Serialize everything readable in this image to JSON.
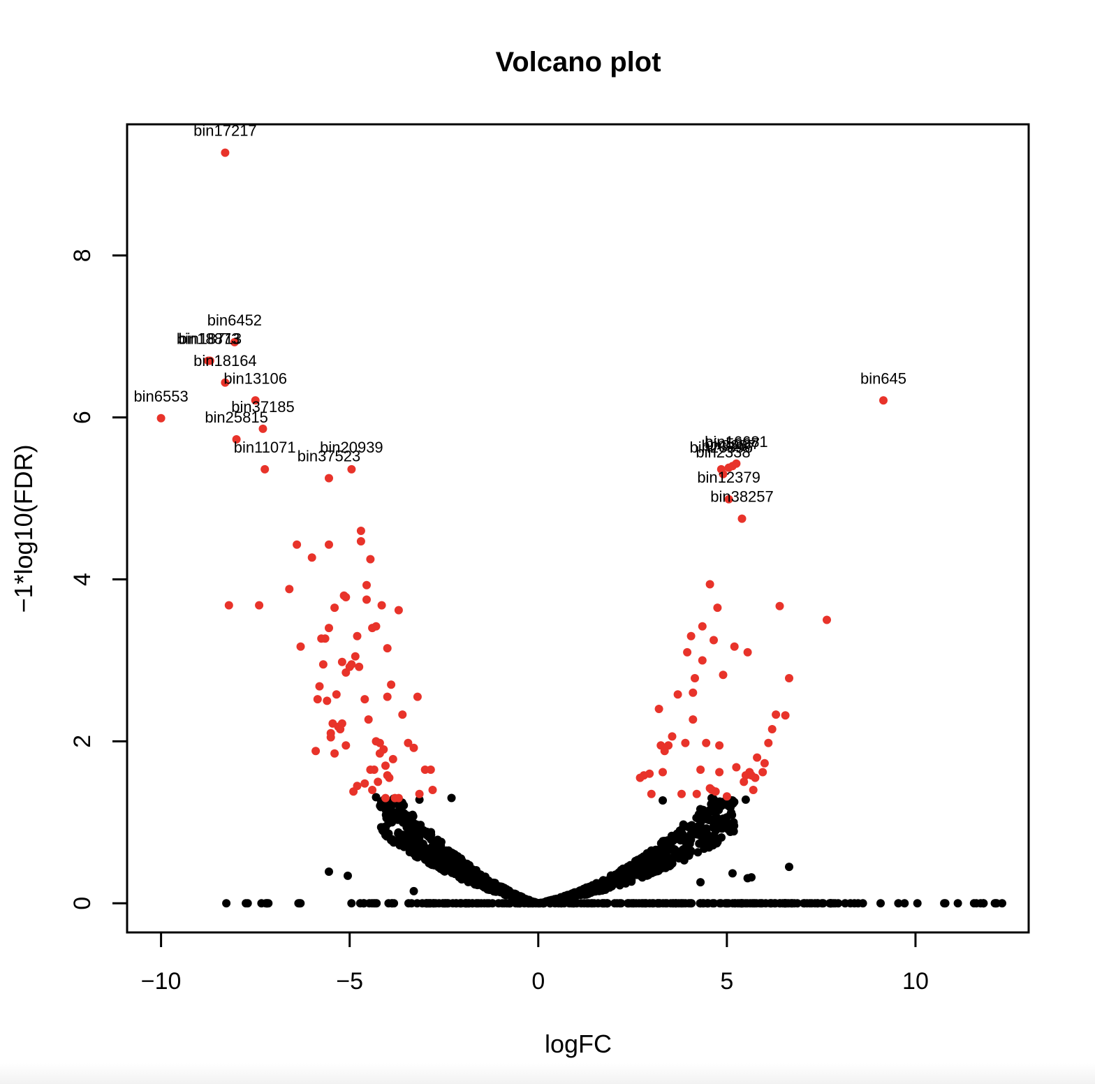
{
  "chart_data": {
    "type": "scatter",
    "title": "Volcano plot",
    "xlabel": "logFC",
    "ylabel": "−1*log10(FDR)",
    "xlim": [
      -10.9,
      13.0
    ],
    "ylim": [
      -0.36,
      9.62
    ],
    "x_ticks": [
      -10,
      -5,
      0,
      5,
      10
    ],
    "x_tick_labels": [
      "−10",
      "−5",
      "0",
      "5",
      "10"
    ],
    "y_ticks": [
      0,
      2,
      4,
      6,
      8
    ],
    "y_tick_labels": [
      "0",
      "2",
      "4",
      "6",
      "8"
    ],
    "grid": false,
    "colors": {
      "significant": "#e8332a",
      "not_significant": "#000000",
      "axes": "#000000"
    },
    "labeled_points": [
      {
        "label": "bin17217",
        "x": -8.3,
        "y": 9.27
      },
      {
        "label": "bin6452",
        "x": -8.05,
        "y": 6.93
      },
      {
        "label": "bin18873",
        "x": -8.75,
        "y": 6.7
      },
      {
        "label": "bin18713",
        "x": -8.7,
        "y": 6.7
      },
      {
        "label": "bin18164",
        "x": -8.3,
        "y": 6.43
      },
      {
        "label": "bin13106",
        "x": -7.5,
        "y": 6.21
      },
      {
        "label": "bin6553",
        "x": -10.0,
        "y": 5.99
      },
      {
        "label": "bin37185",
        "x": -7.3,
        "y": 5.86
      },
      {
        "label": "bin25815",
        "x": -8.0,
        "y": 5.73
      },
      {
        "label": "bin11071",
        "x": -7.25,
        "y": 5.36
      },
      {
        "label": "bin20939",
        "x": -4.95,
        "y": 5.36
      },
      {
        "label": "bin37523",
        "x": -5.55,
        "y": 5.25
      },
      {
        "label": "bin645",
        "x": 9.15,
        "y": 6.21
      },
      {
        "label": "bin16681",
        "x": 5.25,
        "y": 5.43
      },
      {
        "label": "bin26396",
        "x": 4.85,
        "y": 5.36
      },
      {
        "label": "bin12379",
        "x": 5.05,
        "y": 4.99
      },
      {
        "label": "bin38257",
        "x": 5.4,
        "y": 4.75
      }
    ],
    "overlap_labels": [
      {
        "label": "bin2338",
        "x": 4.9,
        "y": 5.3
      },
      {
        "label": "bin3287",
        "x": 5.05,
        "y": 5.38
      },
      {
        "label": "bin5237",
        "x": 5.15,
        "y": 5.4
      }
    ],
    "significant_points": [
      [
        -8.2,
        3.68
      ],
      [
        -7.4,
        3.68
      ],
      [
        -6.6,
        3.88
      ],
      [
        -6.4,
        4.43
      ],
      [
        -6.3,
        3.17
      ],
      [
        -6.0,
        4.27
      ],
      [
        -5.9,
        1.88
      ],
      [
        -5.85,
        2.52
      ],
      [
        -5.8,
        2.68
      ],
      [
        -5.75,
        3.27
      ],
      [
        -5.7,
        2.95
      ],
      [
        -5.65,
        3.27
      ],
      [
        -5.6,
        2.5
      ],
      [
        -5.55,
        3.4
      ],
      [
        -5.55,
        4.43
      ],
      [
        -5.5,
        2.05
      ],
      [
        -5.5,
        2.1
      ],
      [
        -5.45,
        2.22
      ],
      [
        -5.4,
        3.65
      ],
      [
        -5.35,
        2.58
      ],
      [
        -5.3,
        2.18
      ],
      [
        -5.25,
        2.15
      ],
      [
        -5.2,
        2.22
      ],
      [
        -5.2,
        2.98
      ],
      [
        -5.15,
        3.8
      ],
      [
        -5.1,
        3.78
      ],
      [
        -5.1,
        2.85
      ],
      [
        -5.0,
        2.92
      ],
      [
        -4.95,
        2.95
      ],
      [
        -4.85,
        3.05
      ],
      [
        -4.8,
        3.3
      ],
      [
        -4.75,
        2.92
      ],
      [
        -4.7,
        4.47
      ],
      [
        -4.7,
        4.6
      ],
      [
        -4.6,
        2.52
      ],
      [
        -4.55,
        3.93
      ],
      [
        -4.55,
        3.75
      ],
      [
        -4.5,
        2.27
      ],
      [
        -4.45,
        4.25
      ],
      [
        -4.4,
        3.4
      ],
      [
        -4.3,
        3.42
      ],
      [
        -4.3,
        2.0
      ],
      [
        -4.2,
        1.98
      ],
      [
        -4.15,
        3.68
      ],
      [
        -4.1,
        1.9
      ],
      [
        -4.05,
        1.7
      ],
      [
        -4.0,
        3.15
      ],
      [
        -4.0,
        2.55
      ],
      [
        -3.95,
        1.55
      ],
      [
        -3.9,
        2.7
      ],
      [
        -3.85,
        1.78
      ],
      [
        -3.7,
        3.62
      ],
      [
        -3.6,
        2.33
      ],
      [
        -3.45,
        1.98
      ],
      [
        -3.3,
        1.92
      ],
      [
        -3.2,
        2.55
      ],
      [
        -3.0,
        1.65
      ],
      [
        -2.85,
        1.65
      ],
      [
        -2.8,
        1.4
      ],
      [
        -3.15,
        1.35
      ],
      [
        -4.4,
        1.4
      ],
      [
        -4.45,
        1.65
      ],
      [
        -4.6,
        1.48
      ],
      [
        -4.8,
        1.45
      ],
      [
        -4.9,
        1.38
      ],
      [
        -5.4,
        1.85
      ],
      [
        -4.25,
        1.5
      ],
      [
        -3.8,
        1.3
      ],
      [
        -4.05,
        1.3
      ],
      [
        -4.35,
        1.65
      ],
      [
        -4.2,
        1.85
      ],
      [
        -3.7,
        1.3
      ],
      [
        -4.0,
        1.58
      ],
      [
        -5.1,
        1.95
      ],
      [
        3.2,
        2.4
      ],
      [
        3.25,
        1.95
      ],
      [
        3.3,
        1.62
      ],
      [
        3.35,
        1.88
      ],
      [
        3.45,
        1.95
      ],
      [
        3.55,
        2.06
      ],
      [
        3.7,
        2.58
      ],
      [
        3.8,
        1.35
      ],
      [
        3.9,
        1.98
      ],
      [
        3.95,
        3.1
      ],
      [
        4.05,
        3.3
      ],
      [
        4.1,
        2.27
      ],
      [
        4.1,
        2.6
      ],
      [
        4.15,
        2.78
      ],
      [
        4.2,
        1.35
      ],
      [
        4.3,
        1.65
      ],
      [
        4.35,
        3.42
      ],
      [
        4.35,
        3.0
      ],
      [
        4.45,
        1.98
      ],
      [
        4.55,
        3.94
      ],
      [
        4.6,
        1.4
      ],
      [
        4.65,
        3.25
      ],
      [
        4.7,
        1.38
      ],
      [
        4.75,
        3.65
      ],
      [
        4.8,
        1.62
      ],
      [
        4.8,
        1.95
      ],
      [
        4.9,
        2.82
      ],
      [
        5.0,
        1.32
      ],
      [
        5.2,
        3.17
      ],
      [
        5.25,
        1.68
      ],
      [
        5.45,
        1.5
      ],
      [
        5.55,
        3.1
      ],
      [
        5.6,
        1.62
      ],
      [
        5.7,
        1.4
      ],
      [
        5.75,
        1.55
      ],
      [
        5.8,
        1.8
      ],
      [
        5.95,
        1.62
      ],
      [
        6.0,
        1.73
      ],
      [
        6.1,
        1.98
      ],
      [
        6.2,
        2.15
      ],
      [
        6.3,
        2.33
      ],
      [
        6.4,
        3.67
      ],
      [
        6.55,
        2.32
      ],
      [
        6.65,
        2.78
      ],
      [
        7.65,
        3.5
      ],
      [
        2.7,
        1.55
      ],
      [
        2.8,
        1.58
      ],
      [
        2.95,
        1.6
      ],
      [
        3.0,
        1.35
      ],
      [
        5.5,
        1.58
      ],
      [
        5.65,
        1.58
      ],
      [
        4.55,
        1.42
      ]
    ]
  }
}
